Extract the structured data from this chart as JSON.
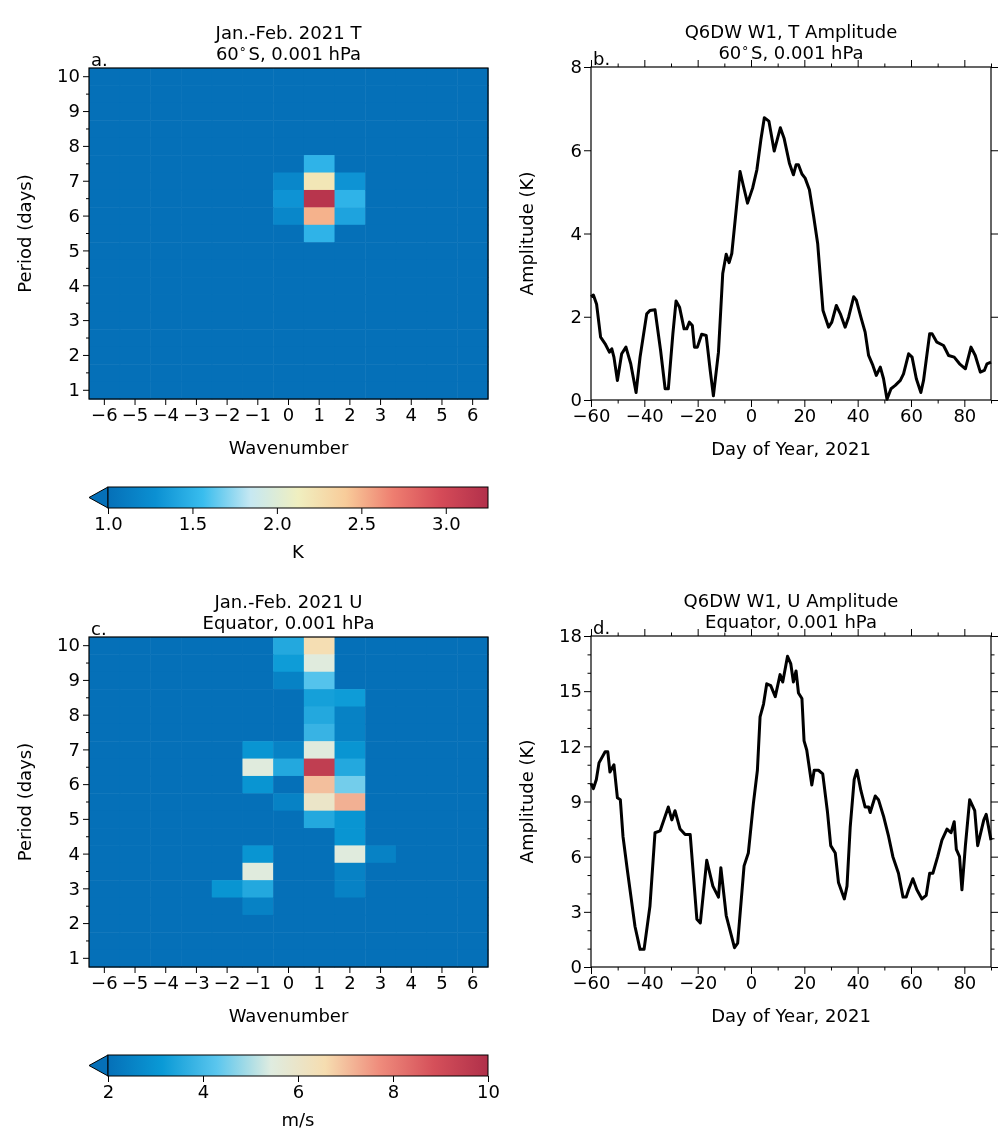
{
  "chart_data": [
    {
      "type": "heatmap",
      "title": "Jan.-Feb. 2021 T",
      "subtitle": "60$^{∘}$S, 0.001 hPa",
      "xlabel": "Wavenumber",
      "ylabel": "Period (days)",
      "clabel": "K",
      "annotations": [
        "a."
      ],
      "categories": [
        "−6",
        "−5",
        "−4",
        "−3",
        "−2",
        "−1",
        "0",
        "1",
        "2",
        "3",
        "4",
        "5",
        "6"
      ],
      "y_categories": [
        "10",
        null,
        "9",
        null,
        "8",
        null,
        "7",
        null,
        "6",
        null,
        "5",
        null,
        "4",
        null,
        "3",
        null,
        "2",
        null,
        "1"
      ],
      "clim": [
        1,
        3.25
      ],
      "cticks": [
        {
          "value": 1,
          "label": "1.0"
        },
        1.5,
        {
          "value": 2,
          "label": "2.0"
        },
        2.5,
        {
          "value": 3,
          "label": "3.0"
        }
      ],
      "colors": [
        "#0570b8",
        "#0b90d2",
        "#39bdee",
        "#c6e8f2",
        "#f0efc0",
        "#f8cc9a",
        "#ee7e70",
        "#d54b58",
        "#b2304b"
      ],
      "cells": [
        [
          1,
          1,
          1,
          1,
          1,
          1,
          1,
          1,
          1,
          1,
          1,
          1,
          1
        ],
        [
          1,
          1,
          1,
          1,
          1,
          1,
          1,
          1,
          1,
          1,
          1,
          1,
          1
        ],
        [
          1,
          1,
          1,
          1,
          1,
          1,
          1,
          1,
          1,
          1,
          1,
          1,
          1
        ],
        [
          1,
          1,
          1,
          1,
          1,
          1,
          1,
          1,
          1,
          1,
          1,
          1,
          1
        ],
        [
          1,
          1,
          1,
          1,
          1,
          1,
          1,
          1,
          1,
          1,
          1,
          1,
          1
        ],
        [
          1,
          1,
          1,
          1,
          1,
          1,
          1,
          1.5,
          1,
          1,
          1,
          1,
          1
        ],
        [
          1,
          1,
          1,
          1,
          1,
          1,
          1.2,
          2.2,
          1.3,
          1,
          1,
          1,
          1
        ],
        [
          1,
          1,
          1,
          1,
          1,
          1,
          1.3,
          3.2,
          1.5,
          1,
          1,
          1,
          1
        ],
        [
          1,
          1,
          1,
          1,
          1,
          1,
          1.2,
          2.5,
          1.4,
          1,
          1,
          1,
          1
        ],
        [
          1,
          1,
          1,
          1,
          1,
          1,
          1,
          1.5,
          1,
          1,
          1,
          1,
          1
        ],
        [
          1,
          1,
          1,
          1,
          1,
          1,
          1,
          1,
          1,
          1,
          1,
          1,
          1
        ],
        [
          1,
          1,
          1,
          1,
          1,
          1,
          1,
          1,
          1,
          1,
          1,
          1,
          1
        ],
        [
          1,
          1,
          1,
          1,
          1,
          1,
          1,
          1,
          1,
          1,
          1,
          1,
          1
        ],
        [
          1,
          1,
          1,
          1,
          1,
          1,
          1,
          1,
          1,
          1,
          1,
          1,
          1
        ],
        [
          1,
          1,
          1,
          1,
          1,
          1,
          1,
          1,
          1,
          1,
          1,
          1,
          1
        ],
        [
          1,
          1,
          1,
          1,
          1,
          1,
          1,
          1,
          1,
          1,
          1,
          1,
          1
        ],
        [
          1,
          1,
          1,
          1,
          1,
          1,
          1,
          1,
          1,
          1,
          1,
          1,
          1
        ],
        [
          1,
          1,
          1,
          1,
          1,
          1,
          1,
          1,
          1,
          1,
          1,
          1,
          1
        ],
        [
          1,
          1,
          1,
          1,
          1,
          1,
          1,
          1,
          1,
          1,
          1,
          1,
          1
        ]
      ]
    },
    {
      "type": "line",
      "title": "Q6DW W1, T Amplitude",
      "subtitle": "60$^{∘}$S, 0.001 hPa",
      "xlabel": "Day of Year, 2021",
      "ylabel": "Amplitude (K)",
      "annotations": [
        "b."
      ],
      "xlim": [
        -60,
        90
      ],
      "xticks": [
        {
          "value": -60,
          "label": "−60"
        },
        {
          "value": -50,
          "label": null
        },
        {
          "value": -40,
          "label": "−40"
        },
        {
          "value": -30,
          "label": null
        },
        {
          "value": -20,
          "label": "−20"
        },
        {
          "value": -10,
          "label": null
        },
        0,
        {
          "value": 10,
          "label": null
        },
        20,
        {
          "value": 30,
          "label": null
        },
        40,
        {
          "value": 50,
          "label": null
        },
        60,
        {
          "value": 70,
          "label": null
        },
        80,
        {
          "value": 90,
          "label": null
        }
      ],
      "ylim": [
        0,
        8
      ],
      "yticks": [
        0,
        2,
        4,
        6,
        8
      ],
      "x": [
        -60,
        -59.1,
        -57.9,
        -56.4,
        -54.7,
        -53.1,
        -52.2,
        -51.4,
        -50.1,
        -48.5,
        -46.9,
        -45.1,
        -43.1,
        -41.6,
        -39.1,
        -37.9,
        -36,
        -33.9,
        -32.2,
        -31,
        -29.3,
        -28.1,
        -26.8,
        -25.1,
        -24.1,
        -23.1,
        -22,
        -21.2,
        -20.1,
        -18.5,
        -16.8,
        -15.3,
        -14.1,
        -12.2,
        -10.6,
        -9.3,
        -8.2,
        -7.2,
        -5.3,
        -4.1,
        -2.8,
        -1.3,
        0.6,
        2.2,
        3.7,
        5,
        6.7,
        8.7,
        11,
        12.4,
        14.4,
        15.9,
        16.9,
        17.8,
        19.1,
        20.3,
        21.9,
        23.5,
        25,
        27,
        29.1,
        30.3,
        32,
        33.5,
        35.3,
        36.6,
        38.5,
        39.5,
        41.2,
        42.8,
        44.1,
        45.7,
        47,
        48.5,
        49.7,
        51,
        52.5,
        54.1,
        56,
        57.2,
        59.1,
        60.4,
        62,
        63.7,
        64.7,
        67,
        67.9,
        69.7,
        72.2,
        74.1,
        76.2,
        78.2,
        80.4,
        82.5,
        84.1,
        86,
        87.5,
        88.5,
        90
      ],
      "series": [
        {
          "color": "#000000",
          "values": [
            2.48,
            2.52,
            2.3,
            1.51,
            1.35,
            1.15,
            1.23,
            1.03,
            0.47,
            1.11,
            1.27,
            0.87,
            0.18,
            1.03,
            2.07,
            2.15,
            2.17,
            1.19,
            0.27,
            0.27,
            1.59,
            2.38,
            2.23,
            1.71,
            1.71,
            1.87,
            1.79,
            1.27,
            1.27,
            1.58,
            1.55,
            0.71,
            0.1,
            1.15,
            3.04,
            3.5,
            3.3,
            3.52,
            4.73,
            5.49,
            5.13,
            4.73,
            5.09,
            5.53,
            6.25,
            6.78,
            6.7,
            5.98,
            6.54,
            6.29,
            5.69,
            5.41,
            5.65,
            5.65,
            5.43,
            5.33,
            5.05,
            4.41,
            3.76,
            2.15,
            1.75,
            1.87,
            2.27,
            2.07,
            1.75,
            1.99,
            2.48,
            2.4,
            1.99,
            1.63,
            1.07,
            0.83,
            0.59,
            0.79,
            0.51,
            0.02,
            0.27,
            0.35,
            0.47,
            0.63,
            1.11,
            1.03,
            0.51,
            0.18,
            0.47,
            1.59,
            1.59,
            1.39,
            1.31,
            1.07,
            1.03,
            0.87,
            0.75,
            1.27,
            1.07,
            0.67,
            0.71,
            0.87,
            0.91
          ]
        }
      ]
    },
    {
      "type": "heatmap",
      "title": "Jan.-Feb. 2021 U",
      "subtitle": "Equator, 0.001 hPa",
      "xlabel": "Wavenumber",
      "ylabel": "Period (days)",
      "clabel": "m/s",
      "annotations": [
        "c."
      ],
      "categories": [
        "−6",
        "−5",
        "−4",
        "−3",
        "−2",
        "−1",
        "0",
        "1",
        "2",
        "3",
        "4",
        "5",
        "6"
      ],
      "y_categories": [
        "10",
        null,
        "9",
        null,
        "8",
        null,
        "7",
        null,
        "6",
        null,
        "5",
        null,
        "4",
        null,
        "3",
        null,
        "2",
        null,
        "1"
      ],
      "clim": [
        2,
        10
      ],
      "cticks": [
        2,
        4,
        6,
        8,
        10
      ],
      "colors": [
        "#0570b8",
        "#0a9ad6",
        "#5ac6ee",
        "#dfece0",
        "#f6ddb0",
        "#ef8c7c",
        "#d5505a",
        "#b0304a"
      ],
      "cells": [
        [
          2,
          2,
          2,
          2,
          2,
          2,
          3.5,
          6.5,
          2,
          2,
          2,
          2,
          2
        ],
        [
          2,
          2,
          2,
          2,
          2,
          2,
          3.2,
          5.5,
          2,
          2,
          2,
          2,
          2
        ],
        [
          2,
          2,
          2,
          2,
          2,
          2,
          2.5,
          4.2,
          2,
          2,
          2,
          2,
          2
        ],
        [
          2,
          2,
          2,
          2,
          2,
          2,
          2,
          3.3,
          3.2,
          2,
          2,
          2,
          2
        ],
        [
          2,
          2,
          2,
          2,
          2,
          2,
          2,
          3.5,
          2.5,
          2,
          2,
          2,
          2
        ],
        [
          2,
          2,
          2,
          2,
          2,
          2,
          2,
          3.8,
          2.5,
          2,
          2,
          2,
          2
        ],
        [
          2,
          2,
          2,
          2,
          2,
          3,
          2.5,
          5.5,
          3,
          2,
          2,
          2,
          2
        ],
        [
          2,
          2,
          2,
          2,
          2,
          5.5,
          3.5,
          9.5,
          3.5,
          2,
          2,
          2,
          2
        ],
        [
          2,
          2,
          2,
          2,
          2,
          3,
          2,
          7,
          4.5,
          2,
          2,
          2,
          2
        ],
        [
          2,
          2,
          2,
          2,
          2,
          2,
          2.5,
          6,
          7.2,
          2,
          2,
          2,
          2
        ],
        [
          2,
          2,
          2,
          2,
          2,
          2,
          2,
          3.5,
          3,
          2,
          2,
          2,
          2
        ],
        [
          2,
          2,
          2,
          2,
          2,
          2,
          2,
          2,
          3,
          2,
          2,
          2,
          2
        ],
        [
          2,
          2,
          2,
          2,
          2,
          3,
          2,
          2,
          5.5,
          2.5,
          2,
          2,
          2
        ],
        [
          2,
          2,
          2,
          2,
          2,
          5.5,
          2,
          2,
          2.5,
          2,
          2,
          2,
          2
        ],
        [
          2,
          2,
          2,
          2,
          3,
          3.5,
          2,
          2,
          2.5,
          2,
          2,
          2,
          2
        ],
        [
          2,
          2,
          2,
          2,
          2,
          2.5,
          2,
          2,
          2,
          2,
          2,
          2,
          2
        ],
        [
          2,
          2,
          2,
          2,
          2,
          2,
          2,
          2,
          2,
          2,
          2,
          2,
          2
        ],
        [
          2,
          2,
          2,
          2,
          2,
          2,
          2,
          2,
          2,
          2,
          2,
          2,
          2
        ],
        [
          2,
          2,
          2,
          2,
          2,
          2,
          2,
          2,
          2,
          2,
          2,
          2,
          2
        ]
      ]
    },
    {
      "type": "line",
      "title": "Q6DW W1, U Amplitude",
      "subtitle": "Equator, 0.001 hPa",
      "xlabel": "Day of Year, 2021",
      "ylabel": "Amplitude (K)",
      "annotations": [
        "d."
      ],
      "xlim": [
        -60,
        90
      ],
      "xticks": [
        {
          "value": -60,
          "label": "−60"
        },
        {
          "value": -50,
          "label": null
        },
        {
          "value": -40,
          "label": "−40"
        },
        {
          "value": -30,
          "label": null
        },
        {
          "value": -20,
          "label": "−20"
        },
        {
          "value": -10,
          "label": null
        },
        0,
        {
          "value": 10,
          "label": null
        },
        20,
        {
          "value": 30,
          "label": null
        },
        40,
        {
          "value": 50,
          "label": null
        },
        60,
        {
          "value": 70,
          "label": null
        },
        80,
        {
          "value": 90,
          "label": null
        }
      ],
      "ylim": [
        0,
        18
      ],
      "yticks": [
        0,
        {
          "value": 1,
          "label": null
        },
        {
          "value": 2,
          "label": null
        },
        3,
        {
          "value": 4,
          "label": null
        },
        {
          "value": 5,
          "label": null
        },
        6,
        {
          "value": 7,
          "label": null
        },
        {
          "value": 8,
          "label": null
        },
        9,
        {
          "value": 10,
          "label": null
        },
        {
          "value": 11,
          "label": null
        },
        12,
        {
          "value": 13,
          "label": null
        },
        {
          "value": 14,
          "label": null
        },
        15,
        {
          "value": 16,
          "label": null
        },
        {
          "value": 17,
          "label": null
        },
        18
      ],
      "x": [
        -60,
        -59.1,
        -58,
        -57,
        -54.7,
        -53.7,
        -52.9,
        -51.4,
        -50.1,
        -49,
        -48,
        -46.4,
        -43.5,
        -41.6,
        -40.1,
        -37.9,
        -36,
        -34.1,
        -31,
        -29.7,
        -28.5,
        -26.6,
        -24.7,
        -22.8,
        -20.3,
        -19,
        -16.6,
        -14.3,
        -12.2,
        -11.3,
        -9.3,
        -6.2,
        -5,
        -2.6,
        -1,
        0.9,
        2.4,
        3.4,
        4.7,
        5.9,
        7.4,
        9.1,
        10.9,
        11.9,
        13.7,
        14.9,
        15.9,
        16.9,
        17.8,
        19.1,
        19.9,
        20.9,
        22.8,
        23.7,
        25.3,
        26.9,
        28.7,
        29.9,
        31.6,
        32.8,
        35,
        36,
        37.2,
        38.7,
        39.7,
        41.2,
        42.8,
        44.1,
        44.7,
        46.6,
        47.8,
        49.7,
        51.6,
        53.2,
        55.3,
        57,
        58.2,
        59.1,
        60.7,
        62.2,
        64.1,
        65.7,
        67,
        68.2,
        70,
        71.6,
        73.5,
        75,
        76.2,
        77,
        78.2,
        79.1,
        80.4,
        82,
        83.9,
        85,
        87.3,
        88.2,
        90
      ],
      "series": [
        {
          "color": "#000000",
          "values": [
            9.98,
            9.7,
            10.2,
            11.1,
            11.7,
            11.7,
            10.6,
            11,
            9.2,
            9.1,
            7.1,
            5.3,
            2.2,
            0.96,
            0.96,
            3.3,
            7.3,
            7.4,
            8.7,
            8,
            8.5,
            7.5,
            7.2,
            7.2,
            2.6,
            2.4,
            5.8,
            4.4,
            3.8,
            5.4,
            2.8,
            1.05,
            1.3,
            5.5,
            6.2,
            8.9,
            10.7,
            13.6,
            14.3,
            15.4,
            15.3,
            14.7,
            15.9,
            15.5,
            16.9,
            16.5,
            15.5,
            16.1,
            14.9,
            14.6,
            12.3,
            11.8,
            9.9,
            10.7,
            10.7,
            10.5,
            8.4,
            6.6,
            6.2,
            4.6,
            3.7,
            4.4,
            7.6,
            10.2,
            10.7,
            9.6,
            8.7,
            8.7,
            8.4,
            9.3,
            9.1,
            8.2,
            7.1,
            6,
            5.1,
            3.8,
            3.8,
            4.2,
            4.8,
            4.2,
            3.7,
            3.9,
            5.1,
            5.1,
            6,
            6.9,
            7.5,
            7.3,
            7.9,
            6.4,
            6,
            4.2,
            6.6,
            9.1,
            8.5,
            6.6,
            8,
            8.3,
            6.9
          ]
        }
      ]
    }
  ]
}
